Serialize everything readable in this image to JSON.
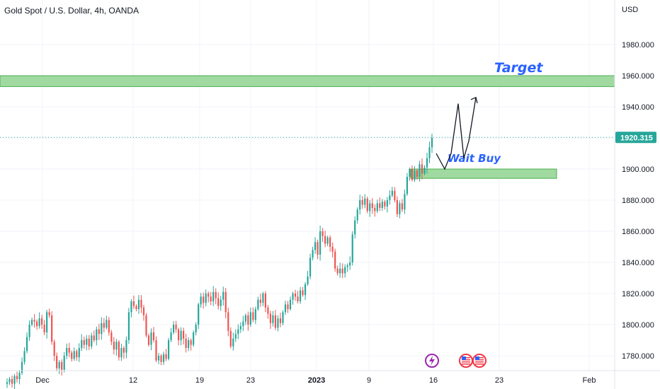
{
  "header": {
    "title": "Gold Spot / U.S. Dollar, 4h, OANDA",
    "currency": "USD"
  },
  "colors": {
    "up": "#26a69a",
    "down": "#ef5350",
    "zone_fill": "#8fd48f",
    "zone_stroke": "#4caf50",
    "last_price_bg": "#26a69a",
    "annotation": "#2962ff",
    "grid": "#f0f3fa"
  },
  "chart_data": {
    "type": "candlestick",
    "title": "Gold Spot / U.S. Dollar, 4h, OANDA",
    "ylabel": "USD",
    "ylim": [
      1762,
      2001
    ],
    "grid": true,
    "y_ticks": [
      "1780.000",
      "1800.000",
      "1820.000",
      "1840.000",
      "1860.000",
      "1880.000",
      "1900.000",
      "1920.000",
      "1940.000",
      "1960.000",
      "1980.000"
    ],
    "x_ticks": [
      {
        "label": "Dec",
        "bold": false
      },
      {
        "label": "12",
        "bold": false
      },
      {
        "label": "19",
        "bold": false
      },
      {
        "label": "23",
        "bold": false
      },
      {
        "label": "2023",
        "bold": true
      },
      {
        "label": "9",
        "bold": false
      },
      {
        "label": "16",
        "bold": false
      },
      {
        "label": "23",
        "bold": false
      },
      {
        "label": "Feb",
        "bold": false
      }
    ],
    "last_price": 1920.315,
    "last_price_label": "1920.315",
    "zones": [
      {
        "name": "target-zone",
        "low": 1953,
        "high": 1960,
        "label": "Target"
      },
      {
        "name": "wait-buy-zone",
        "low": 1894,
        "high": 1900,
        "label": "Wait Buy"
      }
    ],
    "path_annotation": [
      1910,
      1900,
      1910,
      1942,
      1907,
      1918,
      1946
    ],
    "closes": [
      1763,
      1765,
      1762,
      1767,
      1765,
      1769,
      1776,
      1783,
      1792,
      1800,
      1803,
      1802,
      1799,
      1804,
      1800,
      1795,
      1808,
      1806,
      1789,
      1780,
      1772,
      1776,
      1771,
      1780,
      1785,
      1782,
      1778,
      1783,
      1779,
      1785,
      1790,
      1787,
      1791,
      1786,
      1793,
      1790,
      1797,
      1794,
      1801,
      1798,
      1803,
      1795,
      1789,
      1784,
      1789,
      1779,
      1785,
      1782,
      1790,
      1808,
      1815,
      1812,
      1810,
      1816,
      1811,
      1806,
      1793,
      1787,
      1795,
      1790,
      1777,
      1780,
      1776,
      1781,
      1778,
      1790,
      1795,
      1800,
      1797,
      1790,
      1796,
      1791,
      1785,
      1790,
      1787,
      1795,
      1800,
      1813,
      1818,
      1814,
      1820,
      1818,
      1815,
      1821,
      1817,
      1812,
      1816,
      1821,
      1808,
      1796,
      1786,
      1791,
      1794,
      1797,
      1799,
      1802,
      1806,
      1800,
      1808,
      1803,
      1810,
      1816,
      1814,
      1820,
      1811,
      1807,
      1801,
      1806,
      1798,
      1804,
      1801,
      1808,
      1813,
      1810,
      1816,
      1820,
      1818,
      1815,
      1822,
      1819,
      1826,
      1831,
      1843,
      1848,
      1853,
      1845,
      1860,
      1857,
      1852,
      1856,
      1850,
      1847,
      1836,
      1833,
      1836,
      1833,
      1837,
      1838,
      1840,
      1858,
      1867,
      1874,
      1880,
      1877,
      1881,
      1873,
      1878,
      1875,
      1873,
      1878,
      1875,
      1879,
      1876,
      1880,
      1883,
      1886,
      1880,
      1871,
      1878,
      1874,
      1884,
      1895,
      1900,
      1893,
      1899,
      1895,
      1903,
      1897,
      1901,
      1907,
      1914,
      1920
    ]
  }
}
